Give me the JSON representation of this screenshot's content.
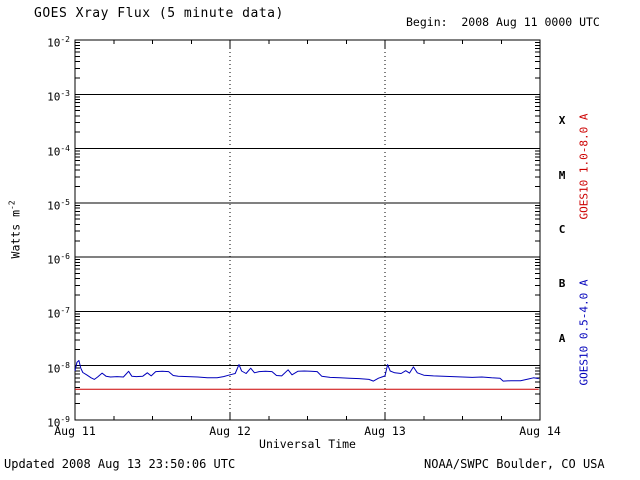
{
  "header": {
    "title": "GOES Xray Flux (5 minute data)",
    "begin": "Begin:  2008 Aug 11 0000 UTC"
  },
  "footer": {
    "updated": "Updated 2008 Aug 13 23:50:06 UTC",
    "credit": "NOAA/SWPC Boulder, CO USA"
  },
  "y_axis": {
    "label_base": "Watts m",
    "label_exp": "-2",
    "tick_base": "10",
    "tick_exps": [
      "-2",
      "-3",
      "-4",
      "-5",
      "-6",
      "-7",
      "-8",
      "-9"
    ]
  },
  "chart_data": {
    "type": "line",
    "title": "GOES Xray Flux (5 minute data)",
    "xlabel": "Universal Time",
    "ylabel": "Watts m^-2",
    "x_unit": "hours since 2008 Aug 11 0000 UTC",
    "xlim": [
      0,
      72
    ],
    "ylog": true,
    "ylim_exp": [
      -9,
      -2
    ],
    "grid": "horizontal solid at each decade, dotted vertical at day boundaries",
    "legend_position": "right axis, rotated",
    "x_ticks": [
      {
        "t": 0,
        "label": "Aug 11"
      },
      {
        "t": 24,
        "label": "Aug 12"
      },
      {
        "t": 48,
        "label": "Aug 13"
      },
      {
        "t": 72,
        "label": "Aug 14"
      }
    ],
    "day_dividers": [
      24,
      48
    ],
    "flare_classes": [
      {
        "label": "X",
        "mid_exp": -3.5
      },
      {
        "label": "M",
        "mid_exp": -4.5
      },
      {
        "label": "C",
        "mid_exp": -5.5
      },
      {
        "label": "B",
        "mid_exp": -6.5
      },
      {
        "label": "A",
        "mid_exp": -7.5
      }
    ],
    "series": [
      {
        "name": "GOES10 1.0-8.0 A",
        "color": "#cc0000",
        "points": [
          [
            0,
            3.7e-09
          ],
          [
            71.8,
            3.7e-09
          ]
        ]
      },
      {
        "name": "GOES10 0.5-4.0 A",
        "color": "#0000bb",
        "points": [
          [
            0,
            8e-09
          ],
          [
            0.3,
            1.15e-08
          ],
          [
            0.6,
            1.25e-08
          ],
          [
            0.9,
            9e-09
          ],
          [
            1.2,
            7.5e-09
          ],
          [
            1.8,
            6.8e-09
          ],
          [
            2.5,
            6e-09
          ],
          [
            3.0,
            5.6e-09
          ],
          [
            3.5,
            6.2e-09
          ],
          [
            4.2,
            7.3e-09
          ],
          [
            4.8,
            6.4e-09
          ],
          [
            5.5,
            6.2e-09
          ],
          [
            6.5,
            6.3e-09
          ],
          [
            7.5,
            6.2e-09
          ],
          [
            8.3,
            7.9e-09
          ],
          [
            8.8,
            6.4e-09
          ],
          [
            9.5,
            6.3e-09
          ],
          [
            10.5,
            6.4e-09
          ],
          [
            11.2,
            7.4e-09
          ],
          [
            11.8,
            6.5e-09
          ],
          [
            12.5,
            7.8e-09
          ],
          [
            13.5,
            7.9e-09
          ],
          [
            14.5,
            7.8e-09
          ],
          [
            15.2,
            6.6e-09
          ],
          [
            16.0,
            6.4e-09
          ],
          [
            17.5,
            6.3e-09
          ],
          [
            19.0,
            6.2e-09
          ],
          [
            20.5,
            6e-09
          ],
          [
            22.0,
            6e-09
          ],
          [
            23.0,
            6.3e-09
          ],
          [
            24.0,
            6.8e-09
          ],
          [
            24.8,
            7.2e-09
          ],
          [
            25.4,
            1.05e-08
          ],
          [
            25.8,
            8e-09
          ],
          [
            26.5,
            7.2e-09
          ],
          [
            27.2,
            9e-09
          ],
          [
            27.8,
            7.4e-09
          ],
          [
            28.5,
            7.8e-09
          ],
          [
            29.5,
            7.9e-09
          ],
          [
            30.5,
            7.8e-09
          ],
          [
            31.2,
            6.6e-09
          ],
          [
            32.0,
            6.5e-09
          ],
          [
            33.0,
            8.4e-09
          ],
          [
            33.6,
            6.8e-09
          ],
          [
            34.5,
            7.9e-09
          ],
          [
            35.5,
            8e-09
          ],
          [
            36.5,
            7.9e-09
          ],
          [
            37.5,
            7.8e-09
          ],
          [
            38.2,
            6.4e-09
          ],
          [
            39.5,
            6.1e-09
          ],
          [
            41.0,
            6e-09
          ],
          [
            42.5,
            5.9e-09
          ],
          [
            44.0,
            5.8e-09
          ],
          [
            45.5,
            5.6e-09
          ],
          [
            46.2,
            5.2e-09
          ],
          [
            47.0,
            5.9e-09
          ],
          [
            48.0,
            6.5e-09
          ],
          [
            48.4,
            1.05e-08
          ],
          [
            48.8,
            8e-09
          ],
          [
            49.5,
            7.4e-09
          ],
          [
            50.5,
            7.2e-09
          ],
          [
            51.2,
            8.1e-09
          ],
          [
            51.8,
            7.3e-09
          ],
          [
            52.4,
            9.5e-09
          ],
          [
            53.0,
            7.4e-09
          ],
          [
            54.0,
            6.7e-09
          ],
          [
            55.5,
            6.5e-09
          ],
          [
            57.0,
            6.4e-09
          ],
          [
            58.5,
            6.3e-09
          ],
          [
            60.0,
            6.2e-09
          ],
          [
            61.5,
            6.1e-09
          ],
          [
            63.0,
            6.2e-09
          ],
          [
            64.5,
            6e-09
          ],
          [
            65.8,
            5.9e-09
          ],
          [
            66.3,
            5.2e-09
          ],
          [
            67.5,
            5.3e-09
          ],
          [
            69.0,
            5.3e-09
          ],
          [
            70.2,
            5.7e-09
          ],
          [
            71.0,
            6e-09
          ],
          [
            71.8,
            5.8e-09
          ]
        ]
      }
    ]
  }
}
